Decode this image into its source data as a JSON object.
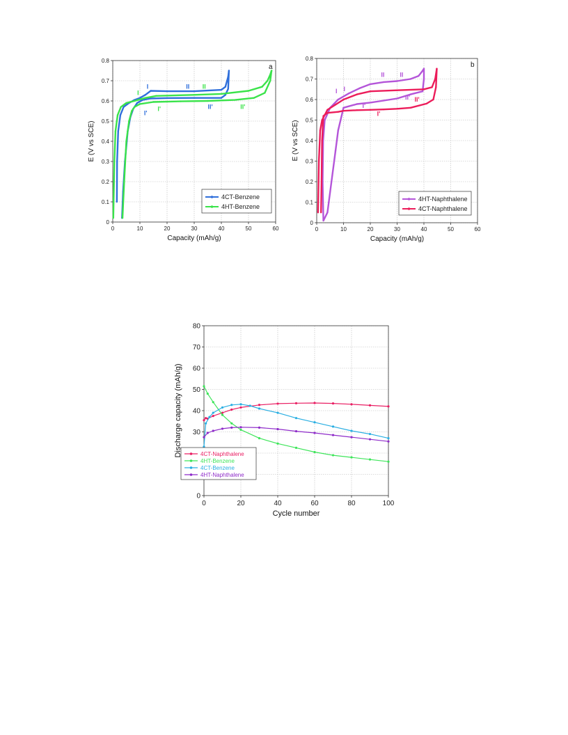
{
  "chart_data": [
    {
      "id": "a",
      "type": "line",
      "panel_label": "a",
      "xlabel": "Capacity (mAh/g)",
      "ylabel": "E (V vs SCE)",
      "xlim": [
        0,
        60
      ],
      "ylim": [
        0,
        0.8
      ],
      "xticks": [
        "0",
        "10",
        "20",
        "30",
        "40",
        "50",
        "60"
      ],
      "yticks": [
        "0",
        "0.1",
        "0.2",
        "0.3",
        "0.4",
        "0.5",
        "0.6",
        "0.7",
        "0.8"
      ],
      "grid": true,
      "legend_position": "bottom-right",
      "series": [
        {
          "name": "4CT-Benzene",
          "color": "#2f6fdb",
          "charge": [
            [
              1.5,
              0.1
            ],
            [
              1.6,
              0.3
            ],
            [
              2,
              0.45
            ],
            [
              2.8,
              0.53
            ],
            [
              4,
              0.57
            ],
            [
              6,
              0.59
            ],
            [
              8,
              0.605
            ],
            [
              10,
              0.615
            ],
            [
              12,
              0.63
            ],
            [
              14,
              0.65
            ],
            [
              20,
              0.648
            ],
            [
              30,
              0.648
            ],
            [
              40,
              0.655
            ],
            [
              41.5,
              0.67
            ],
            [
              42.5,
              0.72
            ],
            [
              42.8,
              0.75
            ]
          ],
          "discharge": [
            [
              42.8,
              0.75
            ],
            [
              42.5,
              0.66
            ],
            [
              41.5,
              0.63
            ],
            [
              40,
              0.615
            ],
            [
              30,
              0.615
            ],
            [
              20,
              0.614
            ],
            [
              14,
              0.612
            ],
            [
              11,
              0.605
            ],
            [
              9,
              0.59
            ],
            [
              7.5,
              0.56
            ],
            [
              6.5,
              0.52
            ],
            [
              5.5,
              0.45
            ],
            [
              4.5,
              0.3
            ],
            [
              3.8,
              0.15
            ],
            [
              3.4,
              0.02
            ]
          ]
        },
        {
          "name": "4HT-Benzene",
          "color": "#3ae34a",
          "charge": [
            [
              0.2,
              0.02
            ],
            [
              0.6,
              0.3
            ],
            [
              1,
              0.45
            ],
            [
              1.8,
              0.53
            ],
            [
              3,
              0.57
            ],
            [
              5,
              0.59
            ],
            [
              8,
              0.6
            ],
            [
              12,
              0.615
            ],
            [
              16,
              0.625
            ],
            [
              30,
              0.63
            ],
            [
              40,
              0.635
            ],
            [
              50,
              0.65
            ],
            [
              55,
              0.67
            ],
            [
              57,
              0.7
            ],
            [
              58,
              0.73
            ],
            [
              58.5,
              0.75
            ]
          ],
          "discharge": [
            [
              58.5,
              0.75
            ],
            [
              58,
              0.7
            ],
            [
              56,
              0.64
            ],
            [
              52,
              0.615
            ],
            [
              45,
              0.605
            ],
            [
              35,
              0.6
            ],
            [
              25,
              0.598
            ],
            [
              15,
              0.595
            ],
            [
              10,
              0.585
            ],
            [
              8,
              0.57
            ],
            [
              7,
              0.55
            ],
            [
              6,
              0.5
            ],
            [
              5,
              0.4
            ],
            [
              4.2,
              0.2
            ],
            [
              3.6,
              0.02
            ]
          ]
        }
      ],
      "annotations": [
        {
          "text": "I",
          "x": 12.5,
          "y": 0.66,
          "color": "#2f6fdb"
        },
        {
          "text": "II",
          "x": 27,
          "y": 0.66,
          "color": "#2f6fdb"
        },
        {
          "text": "II'",
          "x": 35,
          "y": 0.56,
          "color": "#2f6fdb"
        },
        {
          "text": "I'",
          "x": 11.5,
          "y": 0.53,
          "color": "#2f6fdb"
        },
        {
          "text": "I",
          "x": 9,
          "y": 0.63,
          "color": "#3ae34a"
        },
        {
          "text": "II",
          "x": 33,
          "y": 0.66,
          "color": "#3ae34a"
        },
        {
          "text": "II'",
          "x": 47,
          "y": 0.56,
          "color": "#3ae34a"
        },
        {
          "text": "I'",
          "x": 16.5,
          "y": 0.55,
          "color": "#3ae34a"
        }
      ]
    },
    {
      "id": "b",
      "type": "line",
      "panel_label": "b",
      "xlabel": "Capacity (mAh/g)",
      "ylabel": "E (V vs SCE)",
      "xlim": [
        0,
        60
      ],
      "ylim": [
        0,
        0.8
      ],
      "xticks": [
        "0",
        "10",
        "20",
        "30",
        "40",
        "50",
        "60"
      ],
      "yticks": [
        "0",
        "0.1",
        "0.2",
        "0.3",
        "0.4",
        "0.5",
        "0.6",
        "0.7",
        "0.8"
      ],
      "grid": true,
      "legend_position": "bottom-right",
      "series": [
        {
          "name": "4HT-Naphthalene",
          "color": "#b455d9",
          "charge": [
            [
              2.5,
              0.01
            ],
            [
              2.2,
              0.2
            ],
            [
              2.4,
              0.4
            ],
            [
              3,
              0.5
            ],
            [
              5,
              0.56
            ],
            [
              8,
              0.6
            ],
            [
              12,
              0.63
            ],
            [
              16,
              0.655
            ],
            [
              20,
              0.675
            ],
            [
              25,
              0.685
            ],
            [
              30,
              0.69
            ],
            [
              35,
              0.7
            ],
            [
              38,
              0.715
            ],
            [
              39.5,
              0.74
            ],
            [
              40,
              0.75
            ]
          ],
          "discharge": [
            [
              40,
              0.75
            ],
            [
              40,
              0.7
            ],
            [
              39.5,
              0.64
            ],
            [
              35,
              0.625
            ],
            [
              30,
              0.605
            ],
            [
              25,
              0.595
            ],
            [
              20,
              0.585
            ],
            [
              15,
              0.578
            ],
            [
              10,
              0.56
            ],
            [
              8,
              0.45
            ],
            [
              7,
              0.35
            ],
            [
              5.5,
              0.2
            ],
            [
              4,
              0.05
            ],
            [
              2.5,
              0.01
            ]
          ]
        },
        {
          "name": "4CT-Naphthalene",
          "color": "#ec1c5a",
          "charge": [
            [
              0.5,
              0.05
            ],
            [
              0.8,
              0.3
            ],
            [
              1.3,
              0.45
            ],
            [
              2,
              0.5
            ],
            [
              4,
              0.55
            ],
            [
              7,
              0.575
            ],
            [
              10,
              0.6
            ],
            [
              15,
              0.625
            ],
            [
              20,
              0.64
            ],
            [
              30,
              0.645
            ],
            [
              40,
              0.65
            ],
            [
              43,
              0.66
            ],
            [
              44.2,
              0.7
            ],
            [
              44.8,
              0.75
            ]
          ],
          "discharge": [
            [
              44.8,
              0.75
            ],
            [
              44.5,
              0.66
            ],
            [
              43.5,
              0.6
            ],
            [
              41,
              0.58
            ],
            [
              35,
              0.56
            ],
            [
              30,
              0.555
            ],
            [
              25,
              0.552
            ],
            [
              20,
              0.55
            ],
            [
              15,
              0.548
            ],
            [
              10,
              0.545
            ],
            [
              8,
              0.54
            ],
            [
              4,
              0.535
            ],
            [
              2.5,
              0.52
            ],
            [
              2,
              0.4
            ],
            [
              1.8,
              0.2
            ],
            [
              1.6,
              0.05
            ]
          ]
        }
      ],
      "annotations": [
        {
          "text": "II",
          "x": 24,
          "y": 0.71,
          "color": "#b455d9"
        },
        {
          "text": "II",
          "x": 31,
          "y": 0.71,
          "color": "#b455d9"
        },
        {
          "text": "I",
          "x": 7,
          "y": 0.63,
          "color": "#b455d9"
        },
        {
          "text": "I",
          "x": 10,
          "y": 0.64,
          "color": "#b455d9"
        },
        {
          "text": "I'",
          "x": 17,
          "y": 0.56,
          "color": "#b455d9"
        },
        {
          "text": "II'",
          "x": 33,
          "y": 0.6,
          "color": "#b455d9"
        },
        {
          "text": "II'",
          "x": 36.5,
          "y": 0.59,
          "color": "#ec1c5a"
        },
        {
          "text": "I'",
          "x": 22.5,
          "y": 0.52,
          "color": "#ec1c5a"
        }
      ]
    },
    {
      "id": "c",
      "type": "line",
      "xlabel": "Cycle number",
      "ylabel": "Discharge capacity (mAh/g)",
      "xlim": [
        0,
        100
      ],
      "ylim": [
        0,
        80
      ],
      "xticks": [
        "0",
        "20",
        "40",
        "60",
        "80",
        "100"
      ],
      "yticks": [
        "0",
        "10",
        "20",
        "30",
        "40",
        "50",
        "60",
        "70",
        "80"
      ],
      "grid": true,
      "legend_position": "bottom-left",
      "series": [
        {
          "name": "4CT-Naphthalene",
          "color": "#e91e63",
          "points": [
            [
              0,
              35.5
            ],
            [
              1,
              36.5
            ],
            [
              2,
              36.2
            ],
            [
              5,
              37.5
            ],
            [
              10,
              39
            ],
            [
              15,
              40.5
            ],
            [
              20,
              41.5
            ],
            [
              30,
              42.7
            ],
            [
              40,
              43.3
            ],
            [
              50,
              43.5
            ],
            [
              60,
              43.6
            ],
            [
              70,
              43.4
            ],
            [
              80,
              43
            ],
            [
              90,
              42.5
            ],
            [
              100,
              42
            ]
          ]
        },
        {
          "name": "4HT-Benzene",
          "color": "#3ee55a",
          "points": [
            [
              0,
              51.5
            ],
            [
              2,
              48
            ],
            [
              5,
              44
            ],
            [
              10,
              38
            ],
            [
              15,
              34
            ],
            [
              20,
              31
            ],
            [
              30,
              27
            ],
            [
              40,
              24.5
            ],
            [
              50,
              22.5
            ],
            [
              60,
              20.5
            ],
            [
              70,
              19
            ],
            [
              80,
              18
            ],
            [
              90,
              17
            ],
            [
              100,
              16
            ]
          ]
        },
        {
          "name": "4CT-Benzene",
          "color": "#29aee2",
          "points": [
            [
              0,
              23
            ],
            [
              1,
              34
            ],
            [
              3,
              37
            ],
            [
              5,
              39
            ],
            [
              10,
              41.5
            ],
            [
              15,
              42.7
            ],
            [
              20,
              43
            ],
            [
              25,
              42.3
            ],
            [
              30,
              41
            ],
            [
              40,
              39
            ],
            [
              50,
              36.5
            ],
            [
              60,
              34.5
            ],
            [
              70,
              32.5
            ],
            [
              80,
              30.5
            ],
            [
              90,
              29
            ],
            [
              100,
              27
            ]
          ]
        },
        {
          "name": "4HT-Naphthalene",
          "color": "#8e2bc9",
          "points": [
            [
              0,
              27.5
            ],
            [
              2,
              29.5
            ],
            [
              5,
              30.5
            ],
            [
              10,
              31.5
            ],
            [
              15,
              32
            ],
            [
              20,
              32.2
            ],
            [
              30,
              32
            ],
            [
              40,
              31.3
            ],
            [
              50,
              30.3
            ],
            [
              60,
              29.5
            ],
            [
              70,
              28.5
            ],
            [
              80,
              27.5
            ],
            [
              90,
              26.5
            ],
            [
              100,
              25.5
            ]
          ]
        }
      ]
    }
  ]
}
